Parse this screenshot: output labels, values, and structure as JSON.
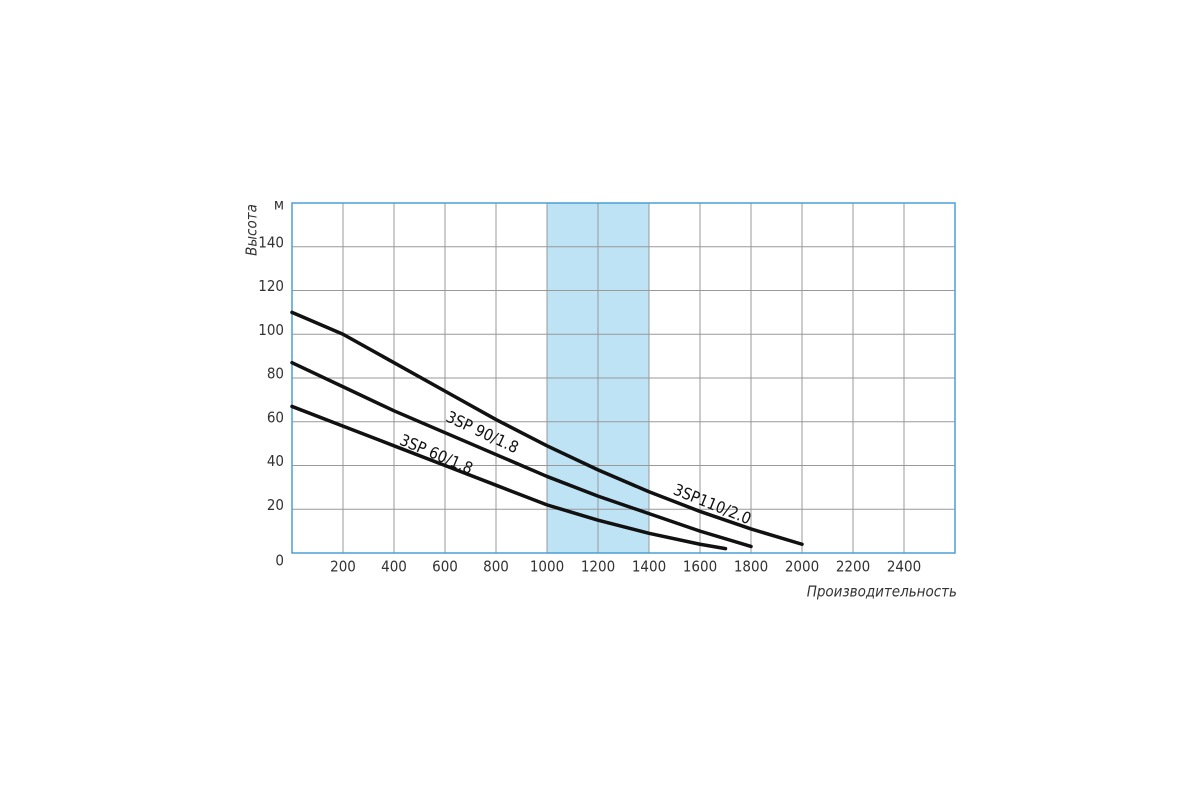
{
  "chart_data": {
    "type": "line",
    "y_label": "Высота",
    "y_unit": "м",
    "x_label": "Производительность",
    "xlim": [
      0,
      2600
    ],
    "xticks": [
      200,
      400,
      600,
      800,
      1000,
      1200,
      1400,
      1600,
      1800,
      2000,
      2200,
      2400
    ],
    "ylim": [
      0,
      160
    ],
    "yticks": [
      0,
      20,
      40,
      60,
      80,
      100,
      120,
      140
    ],
    "grid": true,
    "highlight_band": [
      1000,
      1400
    ],
    "highlight_color": "#bde3f4",
    "series": [
      {
        "name": "3SP110/2.0",
        "color": "#111111",
        "x": [
          0,
          200,
          400,
          600,
          800,
          1000,
          1200,
          1400,
          1600,
          1800,
          2000
        ],
        "values": [
          110,
          100,
          87,
          74,
          61,
          49,
          38,
          28,
          19,
          11,
          4
        ]
      },
      {
        "name": "3SP 90/1.8",
        "color": "#111111",
        "x": [
          0,
          200,
          400,
          600,
          800,
          1000,
          1200,
          1400,
          1600,
          1800
        ],
        "values": [
          87,
          76,
          65,
          55,
          45,
          35,
          26,
          18,
          10,
          3
        ]
      },
      {
        "name": "3SP 60/1.8",
        "color": "#111111",
        "x": [
          0,
          200,
          400,
          600,
          800,
          1000,
          1200,
          1400,
          1600,
          1700
        ],
        "values": [
          67,
          58,
          49,
          40,
          31,
          22,
          15,
          9,
          4,
          2
        ]
      }
    ]
  }
}
